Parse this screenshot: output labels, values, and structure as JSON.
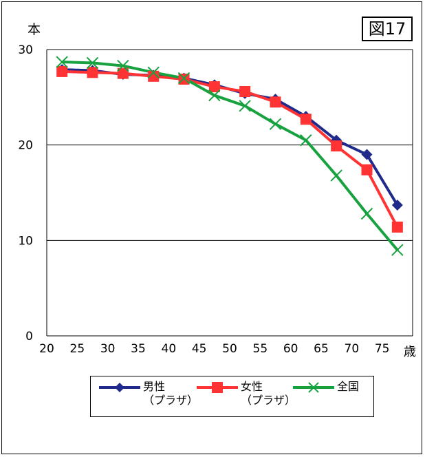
{
  "figure_label": "図17",
  "chart_data": {
    "type": "line",
    "y_unit_label": "本",
    "x_unit_label": "歳",
    "x": [
      22.5,
      27.5,
      32.5,
      37.5,
      42.5,
      47.5,
      52.5,
      57.5,
      62.5,
      67.5,
      72.5,
      77.5
    ],
    "x_ticks": [
      20,
      25,
      30,
      35,
      40,
      45,
      50,
      55,
      60,
      65,
      70,
      75
    ],
    "y_ticks": [
      0,
      10,
      20,
      30
    ],
    "xlim": [
      20,
      80
    ],
    "ylim": [
      0,
      30
    ],
    "grid": "horizontal",
    "legend_position": "bottom",
    "series": [
      {
        "name": "男性",
        "sublabel": "（プラザ）",
        "color": "#1f2a8a",
        "marker": "diamond",
        "values": [
          27.9,
          27.8,
          27.4,
          27.3,
          27.0,
          26.3,
          25.4,
          24.8,
          23.0,
          20.5,
          19.0,
          13.7
        ]
      },
      {
        "name": "女性",
        "sublabel": "（プラザ）",
        "color": "#ff3333",
        "marker": "square",
        "values": [
          27.7,
          27.6,
          27.5,
          27.2,
          26.9,
          26.1,
          25.6,
          24.5,
          22.7,
          19.9,
          17.4,
          11.4
        ]
      },
      {
        "name": "全国",
        "sublabel": "",
        "color": "#17a23f",
        "marker": "x",
        "values": [
          28.7,
          28.6,
          28.3,
          27.6,
          27.0,
          25.2,
          24.1,
          22.2,
          20.5,
          16.8,
          12.8,
          9.0
        ]
      }
    ]
  }
}
